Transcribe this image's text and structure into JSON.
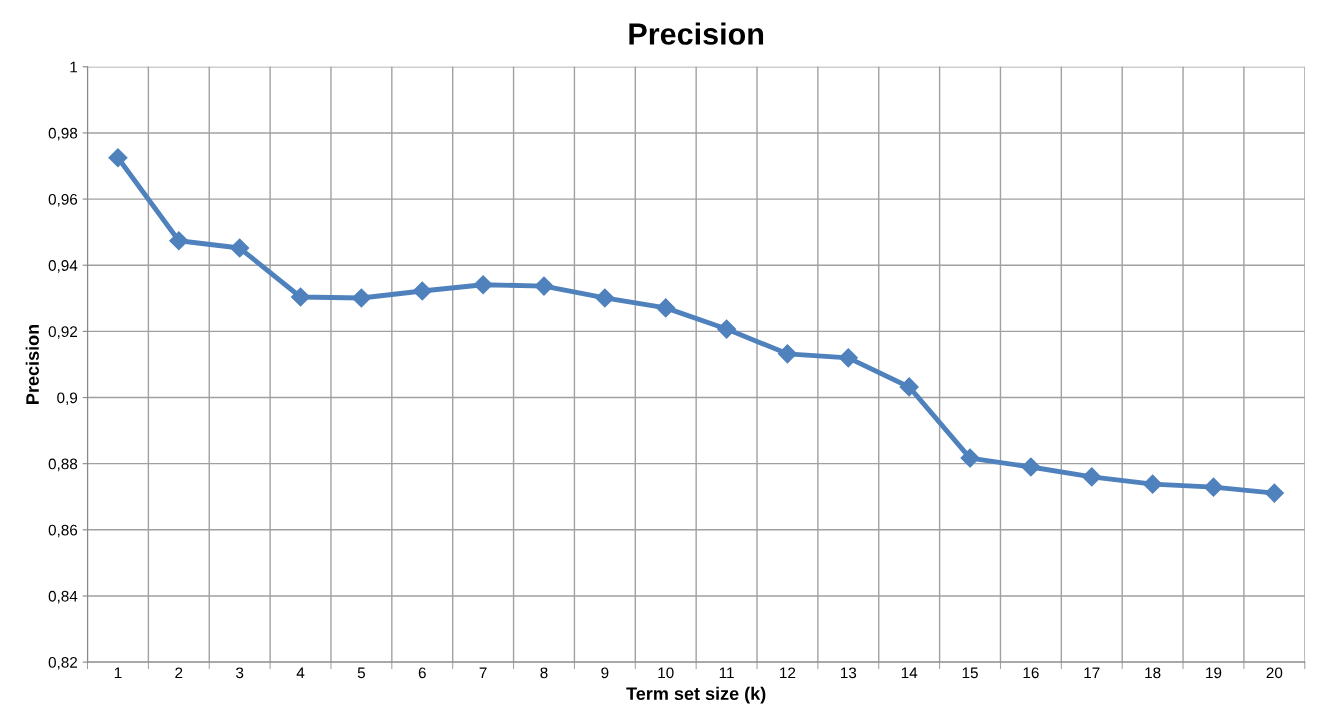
{
  "chart_data": {
    "type": "line",
    "title": "Precision",
    "xlabel": "Term set size (k)",
    "ylabel": "Precision",
    "categories": [
      "1",
      "2",
      "3",
      "4",
      "5",
      "6",
      "7",
      "8",
      "9",
      "10",
      "11",
      "12",
      "13",
      "14",
      "15",
      "16",
      "17",
      "18",
      "19",
      "20"
    ],
    "series": [
      {
        "color": "#4f81bd",
        "values": [
          0.9725,
          0.9474,
          0.9452,
          0.9304,
          0.9301,
          0.9322,
          0.9341,
          0.9337,
          0.9301,
          0.9271,
          0.9207,
          0.9132,
          0.912,
          0.9032,
          0.8817,
          0.879,
          0.876,
          0.8738,
          0.8729,
          0.8711
        ]
      }
    ],
    "ylim": [
      0.82,
      1
    ],
    "yticks": [
      {
        "value": 0.82,
        "label": "0,82"
      },
      {
        "value": 0.84,
        "label": "0,84"
      },
      {
        "value": 0.86,
        "label": "0,86"
      },
      {
        "value": 0.88,
        "label": "0,88"
      },
      {
        "value": 0.9,
        "label": "0,9"
      },
      {
        "value": 0.92,
        "label": "0,92"
      },
      {
        "value": 0.94,
        "label": "0,94"
      },
      {
        "value": 0.96,
        "label": "0,96"
      },
      {
        "value": 0.98,
        "label": "0,98"
      },
      1
    ],
    "grid": true,
    "marker": "diamond",
    "line_style": "solid"
  }
}
